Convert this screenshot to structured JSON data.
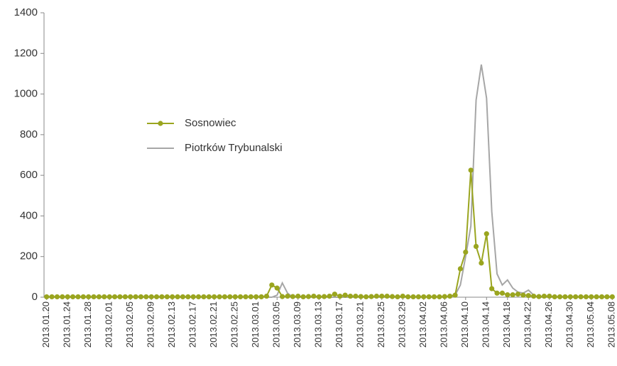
{
  "chart_data": {
    "type": "line",
    "categories": [
      "2013.01.20",
      null,
      null,
      null,
      "2013.01.24",
      null,
      null,
      null,
      "2013.01.28",
      null,
      null,
      null,
      "2013.02.01",
      null,
      null,
      null,
      "2013.02.05",
      null,
      null,
      null,
      "2013.02.09",
      null,
      null,
      null,
      "2013.02.13",
      null,
      null,
      null,
      "2013.02.17",
      null,
      null,
      null,
      "2013.02.21",
      null,
      null,
      null,
      "2013.02.25",
      null,
      null,
      null,
      "2013.03.01",
      null,
      null,
      null,
      "2013.03.05",
      null,
      null,
      null,
      "2013.03.09",
      null,
      null,
      null,
      "2013.03.13",
      null,
      null,
      null,
      "2013.03.17",
      null,
      null,
      null,
      "2013.03.21",
      null,
      null,
      null,
      "2013.03.25",
      null,
      null,
      null,
      "2013.03.29",
      null,
      null,
      null,
      "2013.04.02",
      null,
      null,
      null,
      "2013.04.06",
      null,
      null,
      null,
      "2013.04.10",
      null,
      null,
      null,
      "2013.04.14",
      null,
      null,
      null,
      "2013.04.18",
      null,
      null,
      null,
      "2013.04.22",
      null,
      null,
      null,
      "2013.04.26",
      null,
      null,
      null,
      "2013.04.30",
      null,
      null,
      null,
      "2013.05.04",
      null,
      null,
      null,
      "2013.05.08"
    ],
    "series": [
      {
        "name": "Sosnowiec",
        "color": "#9aa51f",
        "marker": true,
        "values": [
          2,
          2,
          2,
          2,
          2,
          2,
          2,
          2,
          2,
          2,
          2,
          2,
          2,
          2,
          2,
          2,
          2,
          2,
          2,
          2,
          2,
          2,
          2,
          2,
          2,
          2,
          2,
          2,
          2,
          2,
          2,
          2,
          2,
          2,
          2,
          2,
          2,
          2,
          2,
          2,
          2,
          2,
          5,
          60,
          45,
          3,
          5,
          3,
          5,
          2,
          3,
          5,
          2,
          3,
          5,
          15,
          5,
          10,
          5,
          5,
          3,
          2,
          3,
          5,
          5,
          5,
          3,
          2,
          5,
          2,
          2,
          2,
          2,
          2,
          2,
          2,
          3,
          5,
          10,
          140,
          222,
          625,
          250,
          168,
          312,
          42,
          20,
          20,
          12,
          12,
          15,
          10,
          8,
          5,
          3,
          5,
          5,
          2,
          2,
          2,
          2,
          2,
          2,
          2,
          2,
          2,
          2,
          2,
          2
        ]
      },
      {
        "name": "Piotrków Trybunalski",
        "color": "#a6a6a6",
        "marker": false,
        "values": [
          0,
          0,
          0,
          0,
          0,
          0,
          0,
          0,
          0,
          0,
          0,
          0,
          0,
          0,
          0,
          0,
          0,
          0,
          0,
          0,
          0,
          0,
          0,
          0,
          0,
          0,
          0,
          0,
          0,
          0,
          0,
          0,
          0,
          0,
          0,
          0,
          0,
          0,
          0,
          0,
          0,
          0,
          0,
          0,
          10,
          70,
          20,
          0,
          0,
          0,
          0,
          0,
          0,
          0,
          0,
          0,
          0,
          0,
          0,
          0,
          0,
          0,
          0,
          0,
          0,
          0,
          0,
          0,
          0,
          0,
          0,
          0,
          0,
          0,
          0,
          0,
          0,
          2,
          10,
          60,
          200,
          350,
          970,
          1145,
          980,
          420,
          115,
          60,
          85,
          45,
          25,
          20,
          35,
          10,
          0,
          0,
          0,
          0,
          0,
          0,
          0,
          0,
          0,
          0,
          0,
          0,
          0,
          0,
          0
        ]
      }
    ],
    "ylim": [
      0,
      1400
    ],
    "yticks": [
      0,
      200,
      400,
      600,
      800,
      1000,
      1200,
      1400
    ],
    "grid": false
  }
}
